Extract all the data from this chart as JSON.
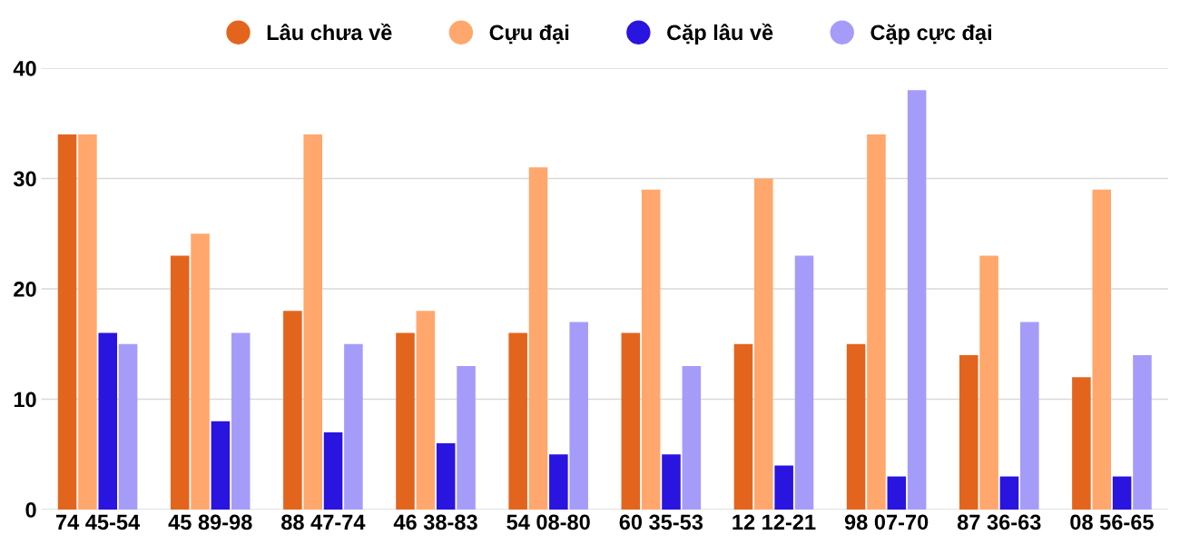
{
  "chart_data": {
    "type": "bar",
    "categories": [
      "74 45-54",
      "45 89-98",
      "88 47-74",
      "46 38-83",
      "54 08-80",
      "60 35-53",
      "12 12-21",
      "98 07-70",
      "87 36-63",
      "08 56-65"
    ],
    "series": [
      {
        "name": "Lâu chưa về",
        "color": "#e3651d",
        "values": [
          34,
          23,
          18,
          16,
          16,
          16,
          15,
          15,
          14,
          12
        ]
      },
      {
        "name": "Cựu đại",
        "color": "#ffa76c",
        "values": [
          34,
          25,
          34,
          18,
          31,
          29,
          30,
          34,
          23,
          29
        ]
      },
      {
        "name": "Cặp lâu về",
        "color": "#2a14e0",
        "values": [
          16,
          8,
          7,
          6,
          5,
          5,
          4,
          3,
          3,
          3
        ]
      },
      {
        "name": "Cặp cực đại",
        "color": "#a59cfa",
        "values": [
          15,
          16,
          15,
          13,
          17,
          13,
          23,
          38,
          17,
          14
        ]
      }
    ],
    "ylim": [
      0,
      40
    ],
    "yticks": [
      0,
      10,
      20,
      30,
      40
    ],
    "grid": "y",
    "legend": "top"
  }
}
